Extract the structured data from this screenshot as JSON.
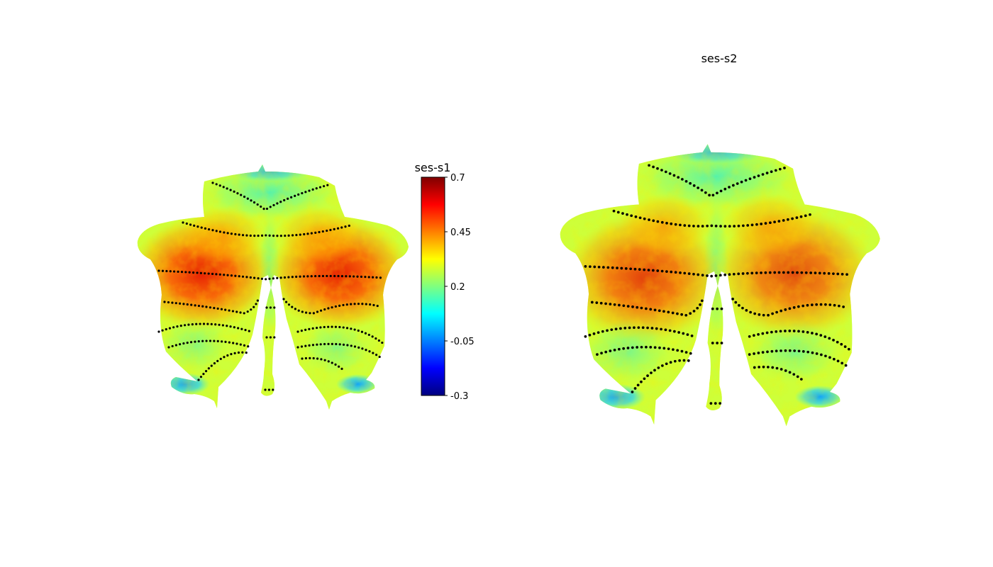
{
  "panels": [
    {
      "title": "ses-s1"
    },
    {
      "title": "ses-s2"
    }
  ],
  "colorbar": {
    "colormap": "jet",
    "min": -0.3,
    "max": 0.7,
    "ticks": [
      {
        "value": 0.7,
        "label": "0.7"
      },
      {
        "value": 0.45,
        "label": "0.45"
      },
      {
        "value": 0.2,
        "label": "0.2"
      },
      {
        "value": -0.05,
        "label": "-0.05"
      },
      {
        "value": -0.3,
        "label": "-0.3"
      }
    ],
    "colors": [
      "#00007f",
      "#0000ff",
      "#007fff",
      "#00ffff",
      "#7fff7f",
      "#ffff00",
      "#ff7f00",
      "#ff0000",
      "#7f0000"
    ]
  },
  "boundaries": {
    "color": "#000000",
    "style": "dotted"
  }
}
